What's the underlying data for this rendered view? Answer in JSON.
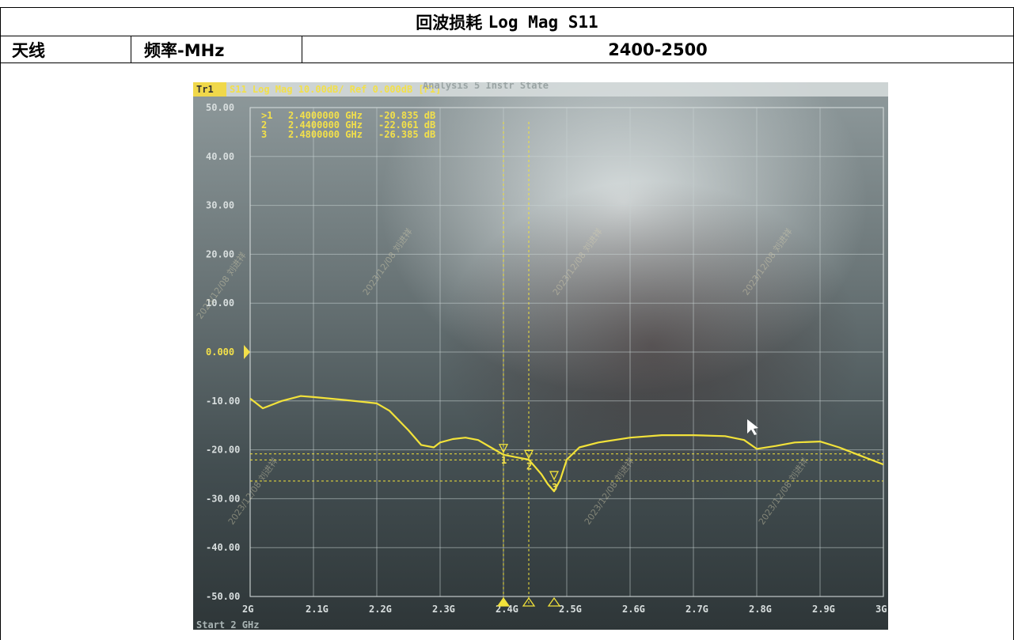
{
  "header": {
    "title_cn": "回波损耗",
    "title_en": "Log Mag S11",
    "antenna_label": "天线",
    "freq_label": "频率-MHz",
    "freq_range": "2400-2500"
  },
  "screen": {
    "trace_label": "Tr1",
    "header_text": "S11 Log Mag 10.00dB/ Ref 0.000dB [F1]",
    "menu_text": "Analysis   5 Instr State",
    "bottom_left_text": "Start 2 GHz",
    "watermark": "2023/12/08 刘进祥",
    "markers": [
      {
        "id": ">1",
        "freq": "2.4000000 GHz",
        "value": "-20.835 dB"
      },
      {
        "id": "2",
        "freq": "2.4400000 GHz",
        "value": "-22.061 dB"
      },
      {
        "id": "3",
        "freq": "2.4800000 GHz",
        "value": "-26.385 dB"
      }
    ],
    "marker_ticks": [
      "1",
      "2",
      "3"
    ],
    "y_ticks": [
      "50.00",
      "40.00",
      "30.00",
      "20.00",
      "10.00",
      "0.000",
      "-10.00",
      "-20.00",
      "-30.00",
      "-40.00",
      "-50.00"
    ],
    "x_ticks": [
      "2G",
      "2.1G",
      "2.2G",
      "2.3G",
      "2.4G",
      "2.5G",
      "2.6G",
      "2.7G",
      "2.8G",
      "2.9G",
      "3G"
    ],
    "colors": {
      "trace": "#f2e23a",
      "text": "#f3e04a",
      "grid": "#c9d3d3",
      "background_dark": "#3a4548"
    }
  },
  "chart_data": {
    "type": "line",
    "xlabel": "",
    "ylabel": "",
    "x_unit": "GHz",
    "y_unit": "dB",
    "xlim": [
      2.0,
      3.0
    ],
    "ylim": [
      -50,
      50
    ],
    "grid": true,
    "series": [
      {
        "name": "S11",
        "x": [
          2.0,
          2.02,
          2.05,
          2.08,
          2.1,
          2.15,
          2.2,
          2.22,
          2.25,
          2.27,
          2.29,
          2.3,
          2.32,
          2.34,
          2.36,
          2.38,
          2.4,
          2.42,
          2.44,
          2.45,
          2.46,
          2.47,
          2.48,
          2.49,
          2.5,
          2.52,
          2.55,
          2.6,
          2.65,
          2.7,
          2.75,
          2.78,
          2.8,
          2.83,
          2.86,
          2.9,
          2.93,
          2.96,
          3.0
        ],
        "y": [
          -9.5,
          -11.5,
          -10.0,
          -9.0,
          -9.2,
          -9.8,
          -10.5,
          -12.0,
          -16.0,
          -19.0,
          -19.5,
          -18.5,
          -17.8,
          -17.5,
          -18.0,
          -19.5,
          -21.0,
          -21.5,
          -22.0,
          -23.5,
          -25.0,
          -27.0,
          -28.5,
          -26.0,
          -22.0,
          -19.5,
          -18.5,
          -17.5,
          -17.0,
          -17.0,
          -17.2,
          -18.0,
          -19.8,
          -19.2,
          -18.5,
          -18.3,
          -19.5,
          -21.0,
          -23.0
        ]
      }
    ],
    "markers": [
      {
        "label": "1",
        "x": 2.4,
        "y": -20.835
      },
      {
        "label": "2",
        "x": 2.44,
        "y": -22.061
      },
      {
        "label": "3",
        "x": 2.48,
        "y": -26.385
      }
    ]
  }
}
